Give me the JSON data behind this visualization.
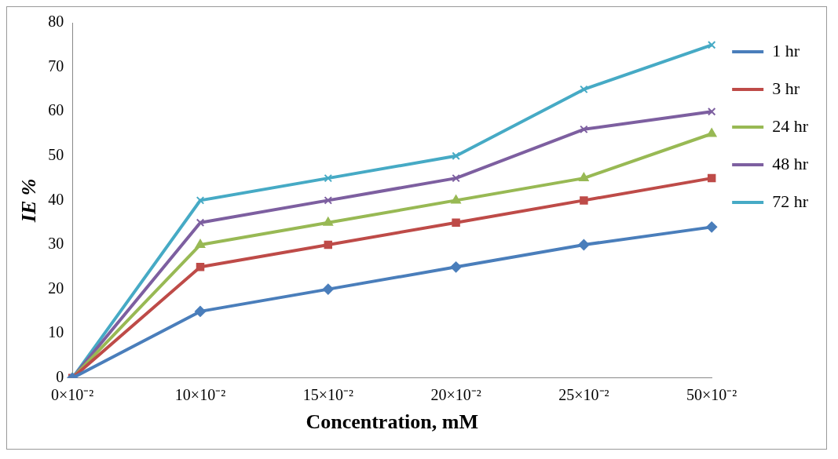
{
  "chart_data": {
    "type": "line",
    "xlabel": "Concentration, mM",
    "ylabel": "IE %",
    "categories": [
      "0×10⁻²",
      "10×10⁻²",
      "15×10⁻²",
      "20×10⁻²",
      "25×10⁻²",
      "50×10⁻²"
    ],
    "ylim": [
      0,
      80
    ],
    "yticks": [
      0,
      10,
      20,
      30,
      40,
      50,
      60,
      70,
      80
    ],
    "grid": false,
    "legend": "right",
    "series": [
      {
        "name": "1 hr",
        "color": "#4a7ebb",
        "marker": "diamond",
        "values": [
          0,
          15,
          20,
          25,
          30,
          34
        ]
      },
      {
        "name": "3 hr",
        "color": "#be4b48",
        "marker": "square",
        "values": [
          0,
          25,
          30,
          35,
          40,
          45
        ]
      },
      {
        "name": "24 hr",
        "color": "#98b954",
        "marker": "triangle",
        "values": [
          0,
          30,
          35,
          40,
          45,
          55
        ]
      },
      {
        "name": "48 hr",
        "color": "#7d5fa0",
        "marker": "cross",
        "values": [
          0,
          35,
          40,
          45,
          56,
          60
        ]
      },
      {
        "name": "72 hr",
        "color": "#46aac5",
        "marker": "cross",
        "values": [
          0,
          40,
          45,
          50,
          65,
          75
        ]
      }
    ]
  }
}
